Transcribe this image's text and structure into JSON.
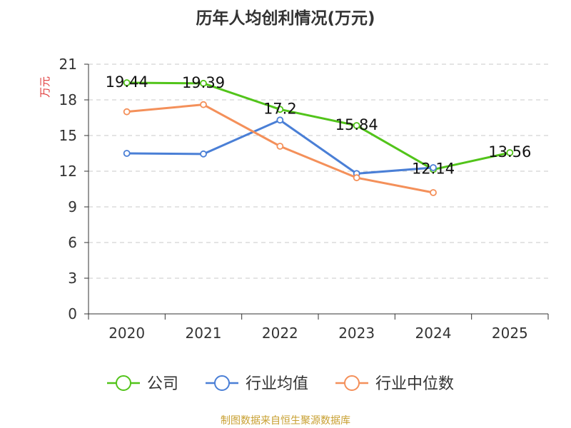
{
  "chart_data": {
    "type": "line",
    "title": "历年人均创利情况(万元)",
    "ylabel": "万元",
    "xlabel": "",
    "ylim": [
      0,
      21
    ],
    "yticks": [
      0,
      3,
      6,
      9,
      12,
      15,
      18,
      21
    ],
    "categories": [
      "2020",
      "2021",
      "2022",
      "2023",
      "2024",
      "2025"
    ],
    "grid": "horizontal dashed",
    "legend_position": "bottom",
    "series": [
      {
        "name": "公司",
        "color": "#52c41a",
        "values": [
          19.44,
          19.39,
          17.2,
          15.84,
          12.14,
          13.56
        ],
        "labels": [
          "19.44",
          "19.39",
          "17.2",
          "15.84",
          "12.14",
          "13.56"
        ]
      },
      {
        "name": "行业均值",
        "color": "#4a7fd6",
        "values": [
          13.5,
          13.45,
          16.3,
          11.8,
          12.3,
          null
        ]
      },
      {
        "name": "行业中位数",
        "color": "#f4905a",
        "values": [
          17.0,
          17.6,
          14.1,
          11.45,
          10.2,
          null
        ]
      }
    ],
    "source": "制图数据来自恒生聚源数据库"
  }
}
